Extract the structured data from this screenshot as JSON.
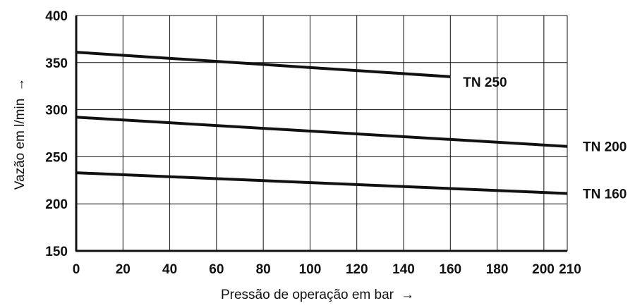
{
  "chart_data": {
    "type": "line",
    "xlabel": "Pressão de operação em bar",
    "ylabel": "Vazão em l/min",
    "axis_arrow": "→",
    "xlim": [
      0,
      210
    ],
    "ylim": [
      150,
      400
    ],
    "x_ticks": [
      0,
      20,
      40,
      60,
      80,
      100,
      120,
      140,
      160,
      180,
      200,
      210
    ],
    "y_ticks": [
      150,
      200,
      250,
      300,
      350,
      400
    ],
    "grid": true,
    "series": [
      {
        "name": "TN 250",
        "x": [
          0,
          160
        ],
        "values": [
          361,
          335
        ]
      },
      {
        "name": "TN 200",
        "x": [
          0,
          210
        ],
        "values": [
          292,
          261
        ]
      },
      {
        "name": "TN 160",
        "x": [
          0,
          210
        ],
        "values": [
          233,
          211
        ]
      }
    ],
    "colors": {
      "line": "#111111",
      "grid": "#111111"
    }
  }
}
